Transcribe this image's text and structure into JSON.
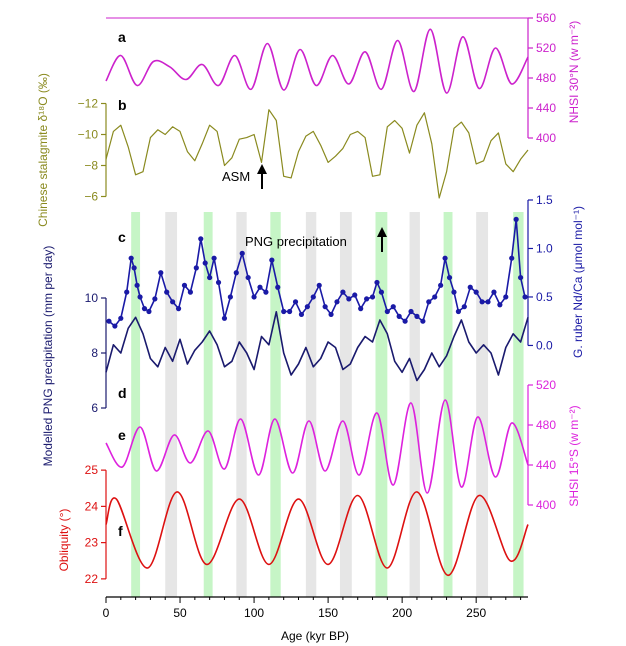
{
  "chart_data": {
    "type": "line",
    "x_axis": {
      "label": "Age (kyr BP)",
      "range": [
        0,
        285
      ],
      "ticks": [
        0,
        50,
        100,
        150,
        200,
        250
      ]
    },
    "shading": {
      "green_bands": [
        [
          17,
          23
        ],
        [
          66,
          72
        ],
        [
          111,
          118
        ],
        [
          182,
          190
        ],
        [
          228,
          234
        ],
        [
          275,
          282
        ]
      ],
      "grey_bands": [
        [
          40,
          48
        ],
        [
          88,
          95
        ],
        [
          135,
          142
        ],
        [
          158,
          166
        ],
        [
          205,
          212
        ],
        [
          250,
          258
        ]
      ]
    },
    "annotations": [
      {
        "text": "ASM",
        "x": 105,
        "arrow": "up"
      },
      {
        "text": "PNG precipitation",
        "x": 180,
        "arrow": "up"
      }
    ],
    "panels": [
      {
        "id": "a",
        "label": "a",
        "axis_label": "NHSI 30°N (w m⁻²)",
        "axis_side": "right",
        "ylim": [
          400,
          560
        ],
        "ticks": [
          400,
          440,
          480,
          520,
          560
        ],
        "color": "#cc22cc",
        "x": [
          0,
          10,
          21,
          32,
          43,
          54,
          65,
          76,
          87,
          98,
          109,
          120,
          131,
          142,
          153,
          164,
          175,
          186,
          197,
          208,
          219,
          230,
          241,
          252,
          263,
          274,
          285
        ],
        "y": [
          476,
          510,
          470,
          502,
          495,
          478,
          498,
          470,
          510,
          465,
          526,
          464,
          518,
          470,
          510,
          472,
          515,
          465,
          530,
          462,
          545,
          460,
          535,
          466,
          520,
          472,
          508
        ]
      },
      {
        "id": "b",
        "label": "b",
        "axis_label": "Chinese stalagmite δ¹⁸O (‰)",
        "axis_side": "left",
        "ylim": [
          -5,
          -13
        ],
        "ticks": [
          -6,
          -8,
          -10,
          -12
        ],
        "color": "#8a8a1f",
        "x": [
          0,
          5,
          10,
          15,
          20,
          25,
          30,
          35,
          40,
          45,
          50,
          55,
          60,
          65,
          70,
          75,
          80,
          85,
          90,
          95,
          100,
          105,
          110,
          115,
          120,
          125,
          130,
          135,
          140,
          145,
          150,
          155,
          160,
          165,
          170,
          175,
          180,
          185,
          190,
          195,
          200,
          205,
          210,
          215,
          220,
          225,
          230,
          235,
          240,
          245,
          250,
          255,
          260,
          265,
          270,
          275,
          280,
          285
        ],
        "y": [
          -8.4,
          -10.2,
          -10.6,
          -9.2,
          -7.4,
          -7.6,
          -9.8,
          -10.3,
          -10.0,
          -10.5,
          -10.2,
          -8.9,
          -8.3,
          -9.4,
          -10.6,
          -10.2,
          -8.0,
          -8.5,
          -9.7,
          -9.8,
          -10.0,
          -8.2,
          -11.6,
          -10.9,
          -7.3,
          -7.2,
          -8.9,
          -9.9,
          -10.2,
          -9.3,
          -8.2,
          -8.6,
          -9.1,
          -10.0,
          -10.2,
          -9.8,
          -7.3,
          -7.4,
          -10.5,
          -10.9,
          -10.4,
          -8.8,
          -10.6,
          -11.4,
          -9.4,
          -5.9,
          -7.6,
          -10.4,
          -10.8,
          -10.1,
          -8.1,
          -8.3,
          -9.6,
          -10.1,
          -8.1,
          -7.6,
          -8.4,
          -9.0
        ]
      },
      {
        "id": "c",
        "label": "c",
        "axis_label": "G. ruber Nd/Ca (μmol mol⁻¹)",
        "axis_side": "right",
        "ylim": [
          -0.15,
          1.5
        ],
        "ticks": [
          0.0,
          0.5,
          1.0,
          1.5
        ],
        "tick_labels": [
          "0.0",
          "0.5",
          "1.0",
          "1.5"
        ],
        "color": "#1a1aa6",
        "markers": true,
        "x": [
          2,
          6,
          10,
          14,
          17,
          19,
          21,
          23,
          26,
          29,
          33,
          37,
          41,
          45,
          49,
          53,
          57,
          61,
          64,
          67,
          70,
          73,
          76,
          80,
          84,
          88,
          92,
          96,
          100,
          104,
          108,
          112,
          116,
          120,
          124,
          128,
          132,
          136,
          140,
          144,
          148,
          152,
          156,
          160,
          164,
          168,
          172,
          176,
          180,
          183,
          186,
          190,
          194,
          198,
          202,
          206,
          210,
          214,
          218,
          222,
          226,
          229,
          232,
          235,
          238,
          242,
          246,
          250,
          254,
          258,
          262,
          266,
          270,
          274,
          277,
          280,
          283
        ],
        "y": [
          0.25,
          0.2,
          0.28,
          0.55,
          0.9,
          0.8,
          0.62,
          0.5,
          0.38,
          0.35,
          0.48,
          0.75,
          0.55,
          0.45,
          0.38,
          0.62,
          0.55,
          0.8,
          1.1,
          0.85,
          0.7,
          0.9,
          0.65,
          0.28,
          0.5,
          0.75,
          0.95,
          0.7,
          0.5,
          0.6,
          0.55,
          0.88,
          0.6,
          0.35,
          0.35,
          0.45,
          0.32,
          0.4,
          0.5,
          0.62,
          0.4,
          0.32,
          0.45,
          0.55,
          0.48,
          0.52,
          0.38,
          0.48,
          0.5,
          0.65,
          0.55,
          0.35,
          0.4,
          0.3,
          0.25,
          0.35,
          0.3,
          0.25,
          0.45,
          0.5,
          0.62,
          0.9,
          0.7,
          0.55,
          0.35,
          0.4,
          0.6,
          0.55,
          0.45,
          0.45,
          0.55,
          0.42,
          0.5,
          0.9,
          1.3,
          0.7,
          0.5
        ]
      },
      {
        "id": "d",
        "label": "d",
        "axis_label": "Modelled PNG precipitation (mm per day)",
        "axis_side": "left",
        "ylim": [
          6,
          10.4
        ],
        "ticks": [
          6,
          8,
          10
        ],
        "color": "#1a1a6e",
        "x": [
          0,
          5,
          10,
          15,
          20,
          25,
          30,
          35,
          40,
          45,
          50,
          55,
          60,
          65,
          70,
          75,
          80,
          85,
          90,
          95,
          100,
          105,
          110,
          115,
          120,
          125,
          130,
          135,
          140,
          145,
          150,
          155,
          160,
          165,
          170,
          175,
          180,
          185,
          190,
          195,
          200,
          205,
          210,
          215,
          220,
          225,
          230,
          235,
          240,
          245,
          250,
          255,
          260,
          265,
          270,
          275,
          280,
          285
        ],
        "y": [
          7.3,
          8.3,
          8.0,
          8.9,
          9.3,
          8.7,
          7.8,
          7.5,
          8.2,
          7.7,
          8.5,
          7.6,
          8.1,
          8.4,
          8.8,
          8.3,
          7.5,
          7.7,
          8.4,
          8.0,
          7.4,
          8.6,
          8.3,
          9.5,
          8.0,
          7.2,
          7.6,
          8.2,
          7.5,
          7.8,
          8.4,
          8.2,
          7.4,
          7.6,
          8.2,
          8.6,
          8.4,
          9.2,
          8.7,
          7.7,
          7.3,
          7.8,
          7.0,
          7.4,
          8.0,
          7.5,
          7.9,
          8.6,
          9.2,
          8.4,
          8.0,
          8.3,
          8.0,
          7.2,
          8.2,
          8.7,
          8.4,
          9.3
        ]
      },
      {
        "id": "e",
        "label": "e",
        "axis_label": "SHSI 15°S (w m⁻²)",
        "axis_side": "right",
        "ylim": [
          400,
          520
        ],
        "ticks": [
          400,
          440,
          480,
          520
        ],
        "color": "#dd22dd",
        "x": [
          0,
          11,
          23,
          34,
          46,
          57,
          69,
          80,
          91,
          103,
          114,
          126,
          137,
          148,
          160,
          171,
          183,
          194,
          206,
          217,
          229,
          240,
          251,
          263,
          274,
          285
        ],
        "y": [
          462,
          438,
          478,
          434,
          470,
          442,
          474,
          436,
          486,
          430,
          486,
          432,
          484,
          434,
          484,
          430,
          492,
          420,
          502,
          412,
          505,
          418,
          488,
          428,
          482,
          440
        ]
      },
      {
        "id": "f",
        "label": "f",
        "axis_label": "Obliquity (°)",
        "axis_side": "left",
        "ylim": [
          21.5,
          25.5
        ],
        "ticks": [
          22,
          23,
          24,
          25
        ],
        "color": "#dd1111",
        "x": [
          0,
          7,
          28,
          48,
          68,
          90,
          110,
          130,
          150,
          170,
          190,
          210,
          231,
          252,
          273,
          285
        ],
        "y": [
          23.5,
          24.2,
          22.3,
          24.4,
          22.4,
          24.2,
          22.4,
          24.2,
          22.4,
          24.3,
          22.3,
          24.4,
          22.1,
          24.3,
          22.5,
          23.5
        ]
      }
    ]
  }
}
